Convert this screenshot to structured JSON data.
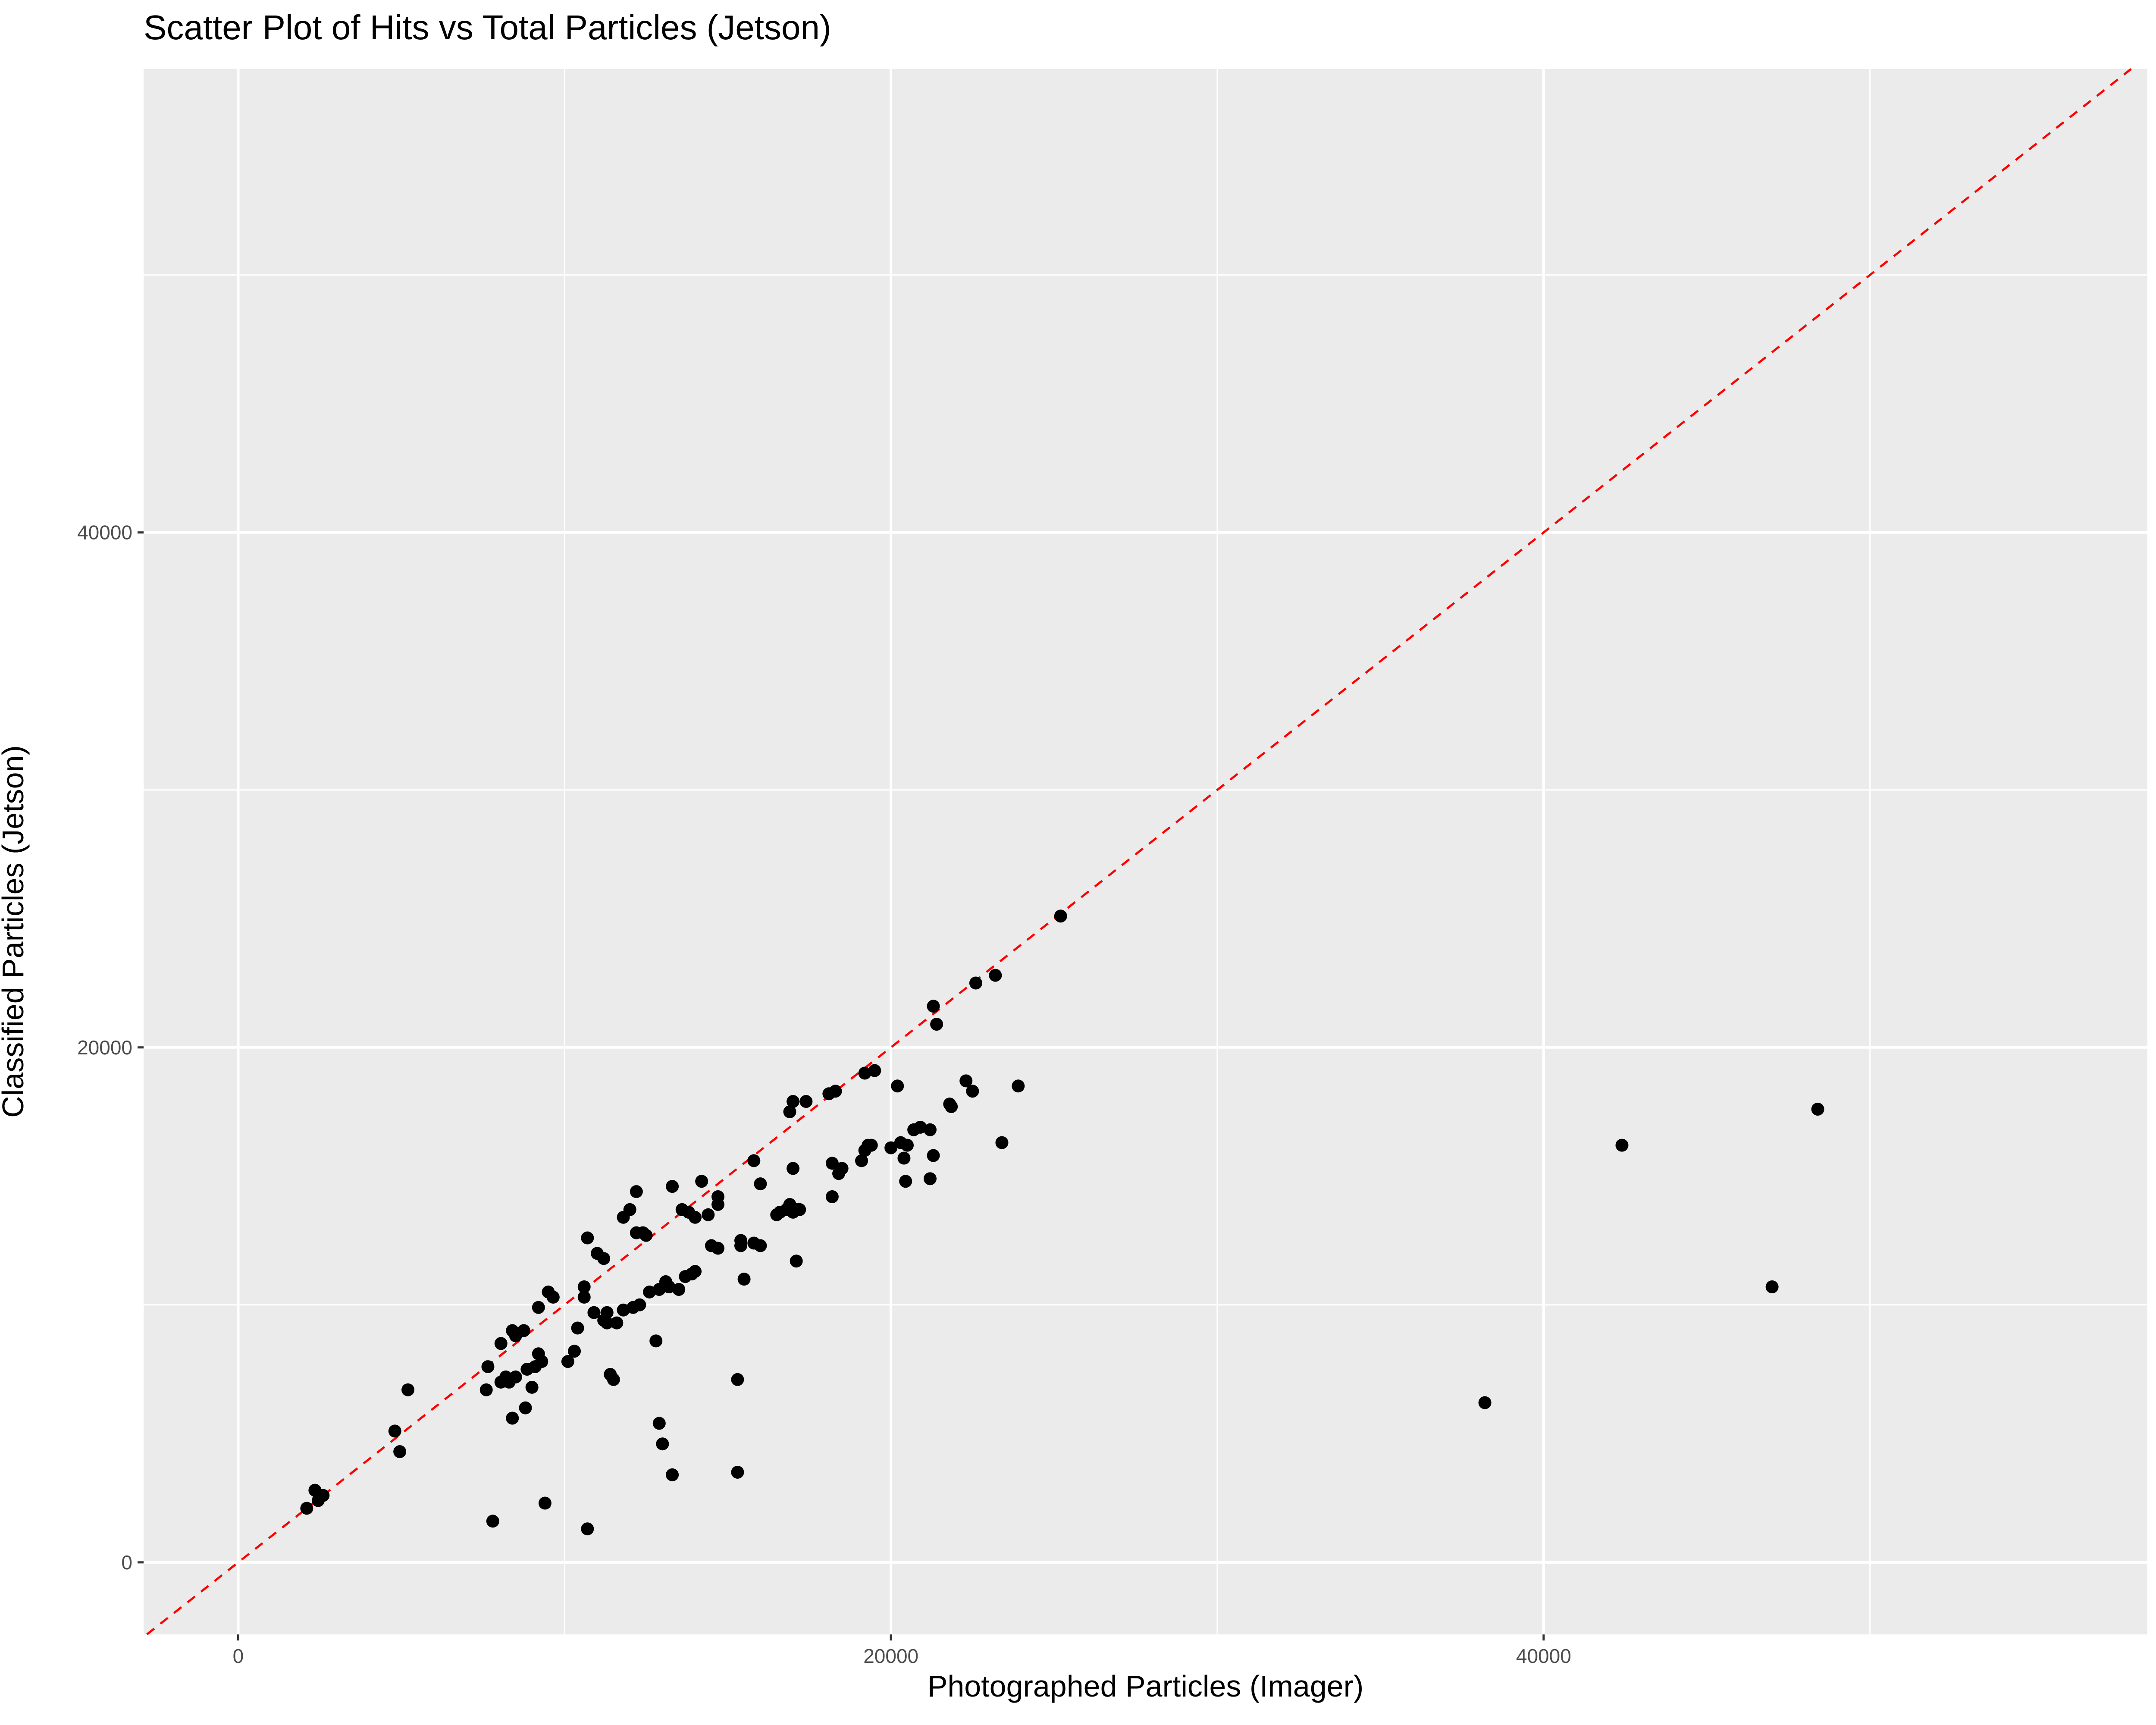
{
  "chart_data": {
    "type": "scatter",
    "title": "Scatter Plot of Hits vs Total Particles (Jetson)",
    "xlabel": "Photographed Particles (Imager)",
    "ylabel": "Classified Particles (Jetson)",
    "xlim": [
      -2900,
      58500
    ],
    "ylim": [
      -2800,
      58000
    ],
    "x_ticks": [
      0,
      20000,
      40000
    ],
    "x_tick_labels": [
      "0",
      "20000",
      "40000"
    ],
    "y_ticks": [
      0,
      20000,
      40000
    ],
    "y_tick_labels": [
      "0",
      "20000",
      "40000"
    ],
    "x_minor_gridlines": [
      10000,
      30000,
      50000
    ],
    "y_minor_gridlines": [
      10000,
      30000,
      50000
    ],
    "grid": true,
    "legend": "none",
    "panel_background": "#ebebeb",
    "grid_color": "#ffffff",
    "point_color": "#000000",
    "reference_line": {
      "slope": 1,
      "intercept": 0,
      "style": "dashed",
      "color": "#ff0000"
    },
    "points": [
      {
        "x": 2100,
        "y": 2100
      },
      {
        "x": 2350,
        "y": 2800
      },
      {
        "x": 2450,
        "y": 2400
      },
      {
        "x": 2600,
        "y": 2600
      },
      {
        "x": 4800,
        "y": 5100
      },
      {
        "x": 4950,
        "y": 4300
      },
      {
        "x": 5200,
        "y": 6700
      },
      {
        "x": 7600,
        "y": 6700
      },
      {
        "x": 7650,
        "y": 7600
      },
      {
        "x": 7800,
        "y": 1600
      },
      {
        "x": 8050,
        "y": 8500
      },
      {
        "x": 8050,
        "y": 7000
      },
      {
        "x": 8200,
        "y": 7200
      },
      {
        "x": 8300,
        "y": 7000
      },
      {
        "x": 8400,
        "y": 5600
      },
      {
        "x": 8400,
        "y": 9000
      },
      {
        "x": 8500,
        "y": 8800
      },
      {
        "x": 8500,
        "y": 7200
      },
      {
        "x": 8750,
        "y": 9000
      },
      {
        "x": 8800,
        "y": 6000
      },
      {
        "x": 8850,
        "y": 7500
      },
      {
        "x": 9000,
        "y": 6800
      },
      {
        "x": 9100,
        "y": 7600
      },
      {
        "x": 9200,
        "y": 8100
      },
      {
        "x": 9200,
        "y": 9900
      },
      {
        "x": 9300,
        "y": 7800
      },
      {
        "x": 9400,
        "y": 2300
      },
      {
        "x": 9500,
        "y": 10500
      },
      {
        "x": 9650,
        "y": 10300
      },
      {
        "x": 10100,
        "y": 7800
      },
      {
        "x": 10300,
        "y": 8200
      },
      {
        "x": 10400,
        "y": 9100
      },
      {
        "x": 10600,
        "y": 10300
      },
      {
        "x": 10600,
        "y": 10700
      },
      {
        "x": 10700,
        "y": 1300
      },
      {
        "x": 10700,
        "y": 12600
      },
      {
        "x": 10900,
        "y": 9700
      },
      {
        "x": 11000,
        "y": 12000
      },
      {
        "x": 11200,
        "y": 9400
      },
      {
        "x": 11200,
        "y": 11800
      },
      {
        "x": 11300,
        "y": 9300
      },
      {
        "x": 11300,
        "y": 9700
      },
      {
        "x": 11400,
        "y": 7300
      },
      {
        "x": 11500,
        "y": 7100
      },
      {
        "x": 11600,
        "y": 9300
      },
      {
        "x": 11800,
        "y": 13400
      },
      {
        "x": 11800,
        "y": 9800
      },
      {
        "x": 12000,
        "y": 13700
      },
      {
        "x": 12100,
        "y": 9900
      },
      {
        "x": 12200,
        "y": 12800
      },
      {
        "x": 12200,
        "y": 14400
      },
      {
        "x": 12300,
        "y": 10000
      },
      {
        "x": 12400,
        "y": 12800
      },
      {
        "x": 12500,
        "y": 12700
      },
      {
        "x": 12600,
        "y": 10500
      },
      {
        "x": 12800,
        "y": 8600
      },
      {
        "x": 12900,
        "y": 5400
      },
      {
        "x": 12900,
        "y": 10600
      },
      {
        "x": 13000,
        "y": 4600
      },
      {
        "x": 13100,
        "y": 10900
      },
      {
        "x": 13200,
        "y": 10700
      },
      {
        "x": 13300,
        "y": 3400
      },
      {
        "x": 13300,
        "y": 14600
      },
      {
        "x": 13500,
        "y": 10600
      },
      {
        "x": 13600,
        "y": 13700
      },
      {
        "x": 13700,
        "y": 11100
      },
      {
        "x": 13800,
        "y": 13600
      },
      {
        "x": 13900,
        "y": 11200
      },
      {
        "x": 14000,
        "y": 11300
      },
      {
        "x": 14000,
        "y": 13400
      },
      {
        "x": 14200,
        "y": 14800
      },
      {
        "x": 14400,
        "y": 13500
      },
      {
        "x": 14500,
        "y": 12300
      },
      {
        "x": 14700,
        "y": 12200
      },
      {
        "x": 14700,
        "y": 14200
      },
      {
        "x": 14700,
        "y": 13900
      },
      {
        "x": 15300,
        "y": 7100
      },
      {
        "x": 15300,
        "y": 3500
      },
      {
        "x": 15400,
        "y": 12300
      },
      {
        "x": 15400,
        "y": 12500
      },
      {
        "x": 15500,
        "y": 11000
      },
      {
        "x": 15800,
        "y": 15600
      },
      {
        "x": 15800,
        "y": 12400
      },
      {
        "x": 16000,
        "y": 14700
      },
      {
        "x": 16000,
        "y": 12300
      },
      {
        "x": 16500,
        "y": 13500
      },
      {
        "x": 16600,
        "y": 13600
      },
      {
        "x": 16800,
        "y": 13700
      },
      {
        "x": 16900,
        "y": 17500
      },
      {
        "x": 16900,
        "y": 13900
      },
      {
        "x": 17000,
        "y": 17900
      },
      {
        "x": 17000,
        "y": 15300
      },
      {
        "x": 17000,
        "y": 13600
      },
      {
        "x": 17100,
        "y": 13700
      },
      {
        "x": 17100,
        "y": 11700
      },
      {
        "x": 17200,
        "y": 13700
      },
      {
        "x": 17400,
        "y": 17900
      },
      {
        "x": 18100,
        "y": 18200
      },
      {
        "x": 18200,
        "y": 15500
      },
      {
        "x": 18200,
        "y": 14200
      },
      {
        "x": 18300,
        "y": 18300
      },
      {
        "x": 18400,
        "y": 15100
      },
      {
        "x": 18500,
        "y": 15300
      },
      {
        "x": 19100,
        "y": 15600
      },
      {
        "x": 19200,
        "y": 19000
      },
      {
        "x": 19200,
        "y": 16000
      },
      {
        "x": 19300,
        "y": 16200
      },
      {
        "x": 19400,
        "y": 16200
      },
      {
        "x": 19500,
        "y": 19100
      },
      {
        "x": 20000,
        "y": 16100
      },
      {
        "x": 20200,
        "y": 18500
      },
      {
        "x": 20300,
        "y": 16300
      },
      {
        "x": 20400,
        "y": 15700
      },
      {
        "x": 20450,
        "y": 14800
      },
      {
        "x": 20500,
        "y": 16200
      },
      {
        "x": 20700,
        "y": 16800
      },
      {
        "x": 20900,
        "y": 16900
      },
      {
        "x": 21200,
        "y": 16800
      },
      {
        "x": 21200,
        "y": 14900
      },
      {
        "x": 21300,
        "y": 15800
      },
      {
        "x": 21300,
        "y": 21600
      },
      {
        "x": 21400,
        "y": 20900
      },
      {
        "x": 21800,
        "y": 17800
      },
      {
        "x": 21850,
        "y": 17700
      },
      {
        "x": 22300,
        "y": 18700
      },
      {
        "x": 22500,
        "y": 18300
      },
      {
        "x": 22600,
        "y": 22500
      },
      {
        "x": 23200,
        "y": 22800
      },
      {
        "x": 23400,
        "y": 16300
      },
      {
        "x": 23900,
        "y": 18500
      },
      {
        "x": 25200,
        "y": 25100
      },
      {
        "x": 38200,
        "y": 6200
      },
      {
        "x": 42400,
        "y": 16200
      },
      {
        "x": 47000,
        "y": 10700
      },
      {
        "x": 48400,
        "y": 17600
      }
    ]
  }
}
